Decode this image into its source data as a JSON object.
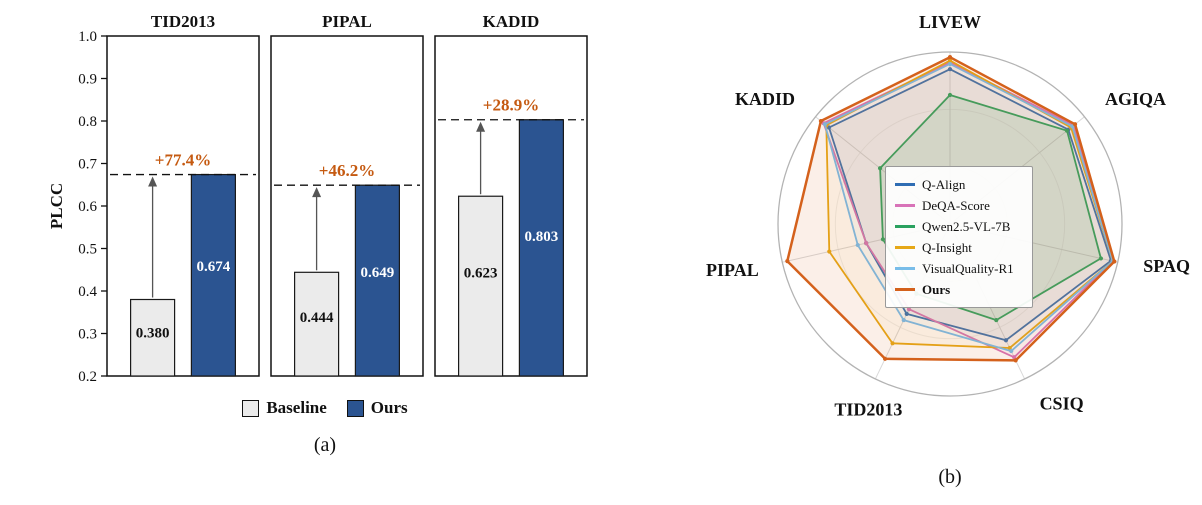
{
  "captions": {
    "a": "(a)",
    "b": "(b)"
  },
  "chart_data": [
    {
      "type": "bar",
      "panel": "a",
      "ylabel": "PLCC",
      "ylim": [
        0.2,
        1.0
      ],
      "ytick_step": 0.1,
      "yticks": [
        0.2,
        0.3,
        0.4,
        0.5,
        0.6,
        0.7,
        0.8,
        0.9,
        1.0
      ],
      "groups": [
        {
          "title": "TID2013",
          "baseline": 0.38,
          "ours": 0.674,
          "baseline_label": "0.380",
          "ours_label": "0.674",
          "gain_label": "+77.4%"
        },
        {
          "title": "PIPAL",
          "baseline": 0.444,
          "ours": 0.649,
          "baseline_label": "0.444",
          "ours_label": "0.649",
          "gain_label": "+46.2%"
        },
        {
          "title": "KADID",
          "baseline": 0.623,
          "ours": 0.803,
          "baseline_label": "0.623",
          "ours_label": "0.803",
          "gain_label": "+28.9%"
        }
      ],
      "legend": [
        {
          "label": "Baseline",
          "color": "#ebebeb"
        },
        {
          "label": "Ours",
          "color": "#2b5491"
        }
      ],
      "colors": {
        "baseline": "#ebebeb",
        "ours": "#2b5491",
        "gain": "#c55a11",
        "bar_edge": "#1a1a1a",
        "arrow": "#555555"
      },
      "grid": "off",
      "legend_position": "bottom-center"
    },
    {
      "type": "radar",
      "panel": "b",
      "categories": [
        "LIVEW",
        "AGIQA",
        "SPAQ",
        "CSIQ",
        "TID2013",
        "PIPAL",
        "KADID"
      ],
      "rlim": [
        0,
        1
      ],
      "grid": "spokes-and-outer-circle",
      "legend_position": "center-left",
      "series": [
        {
          "name": "Q-Align",
          "color": "#2f6db3",
          "values": [
            0.9,
            0.88,
            0.96,
            0.75,
            0.58,
            0.5,
            0.9
          ]
        },
        {
          "name": "DeQA-Score",
          "color": "#d873b8",
          "values": [
            0.94,
            0.92,
            0.97,
            0.86,
            0.55,
            0.5,
            0.94
          ]
        },
        {
          "name": "Qwen2.5-VL-7B",
          "color": "#2aa15f",
          "values": [
            0.75,
            0.87,
            0.9,
            0.62,
            0.45,
            0.4,
            0.52
          ]
        },
        {
          "name": "Q-Insight",
          "color": "#e6a817",
          "values": [
            0.95,
            0.9,
            0.97,
            0.8,
            0.77,
            0.72,
            0.92
          ]
        },
        {
          "name": "VisualQuality-R1",
          "color": "#79bde9",
          "values": [
            0.93,
            0.91,
            0.97,
            0.82,
            0.62,
            0.55,
            0.93
          ]
        },
        {
          "name": "Ours",
          "color": "#d4611c",
          "values": [
            0.97,
            0.93,
            0.98,
            0.88,
            0.87,
            0.97,
            0.96
          ]
        }
      ]
    }
  ]
}
